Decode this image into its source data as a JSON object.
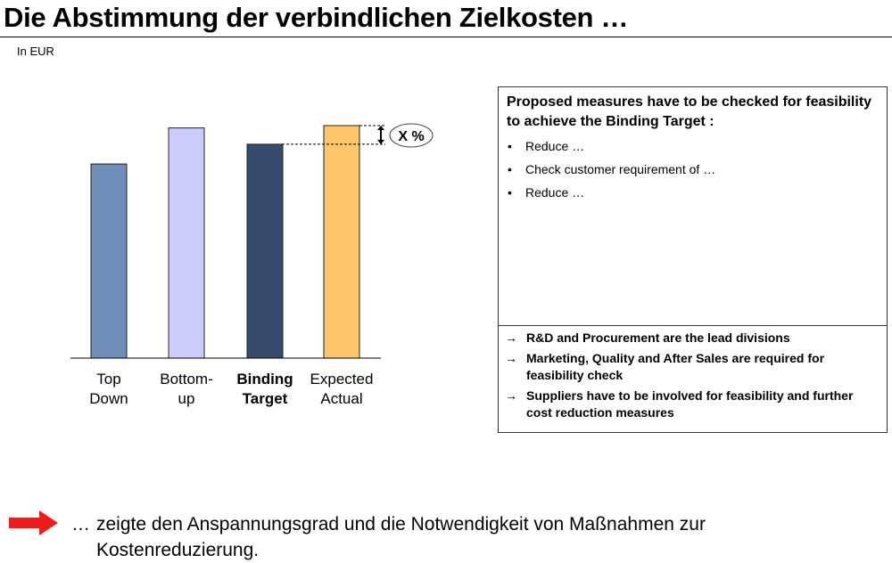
{
  "header": {
    "title": "Die Abstimmung der verbindlichen Zielkosten …",
    "unit": "In EUR"
  },
  "chart_data": {
    "type": "bar",
    "categories": [
      "Top Down",
      "Bottom-up",
      "Binding Target",
      "Expected Actual"
    ],
    "category_lines": [
      [
        "Top",
        "Down"
      ],
      [
        "Bottom-",
        "up"
      ],
      [
        "Binding",
        "Target"
      ],
      [
        "Expected",
        "Actual"
      ]
    ],
    "values": [
      83.5,
      99,
      92,
      100
    ],
    "colors": [
      "#6f8db9",
      "#ccccfb",
      "#374c6c",
      "#fec56b"
    ],
    "bold_category": "Binding Target",
    "annotation": "X %",
    "ylim": [
      0,
      100
    ],
    "xlabel": "",
    "ylabel": "",
    "grid": false
  },
  "panel": {
    "heading": "Proposed measures have to be checked for feasibility to achieve the Binding Target :",
    "bullets": [
      "Reduce …",
      "Check customer requirement of …",
      "Reduce …"
    ],
    "bullet_symbol": "•",
    "arrow_symbol": "→",
    "conclusions": [
      "R&D and Procurement are the lead divisions",
      "Marketing, Quality and After Sales are required for feasibility check",
      "Suppliers have to be involved for feasibility and further cost reduction measures"
    ]
  },
  "footer": {
    "ellipsis": "…",
    "text": "zeigte den Anspannungsgrad und die Notwendigkeit von Maßnahmen zur Kostenreduzierung."
  }
}
